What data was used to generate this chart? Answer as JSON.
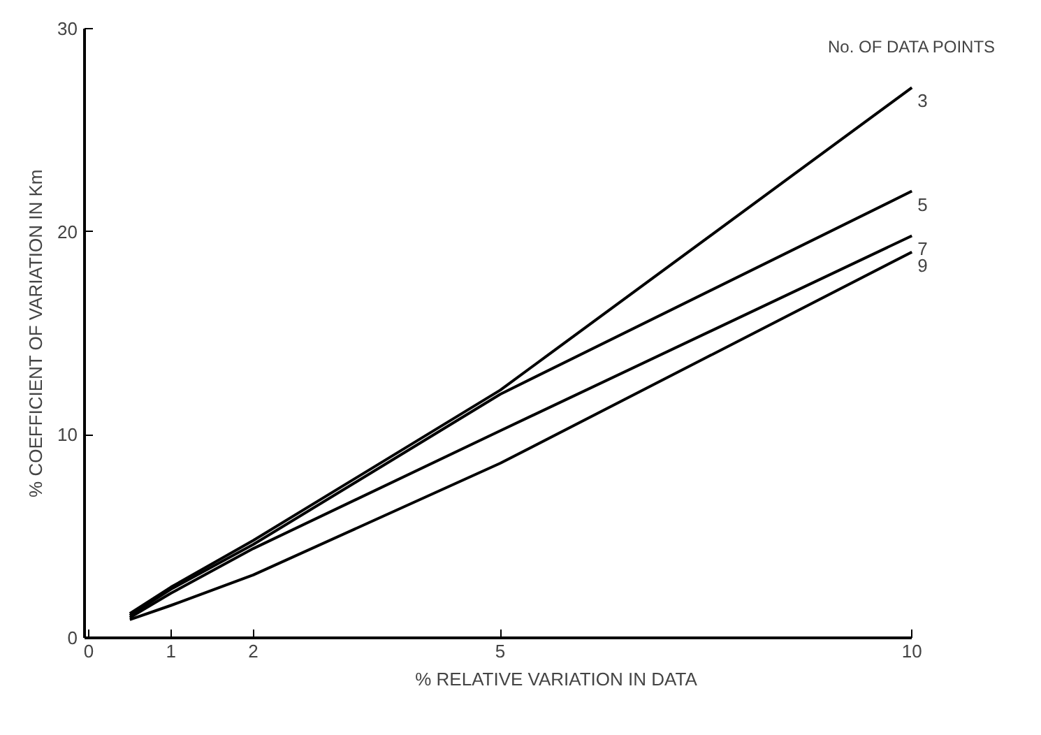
{
  "chart_data": {
    "type": "line",
    "xlabel": "% RELATIVE VARIATION IN DATA",
    "ylabel": "% COEFFICIENT OF VARIATION IN Km",
    "legend_title": "No. OF DATA POINTS",
    "x": [
      0.5,
      1,
      2,
      5,
      10
    ],
    "series": [
      {
        "name": "3",
        "color": "#000000",
        "values": [
          1.2,
          2.5,
          4.8,
          12.2,
          27.1
        ]
      },
      {
        "name": "5",
        "color": "#000000",
        "values": [
          1.1,
          2.4,
          4.6,
          12.0,
          22.0
        ]
      },
      {
        "name": "7",
        "color": "#000000",
        "values": [
          1.0,
          2.2,
          4.4,
          10.2,
          19.8
        ]
      },
      {
        "name": "9",
        "color": "#000000",
        "values": [
          0.9,
          1.6,
          3.1,
          8.6,
          19.0
        ]
      }
    ],
    "xlim": [
      -0.05,
      10
    ],
    "ylim": [
      0,
      30
    ],
    "xticks": [
      0,
      1,
      2,
      5,
      10
    ],
    "yticks": [
      0,
      10,
      20,
      30
    ],
    "grid": false,
    "legend": false,
    "marker": "none",
    "line_style": "solid"
  }
}
